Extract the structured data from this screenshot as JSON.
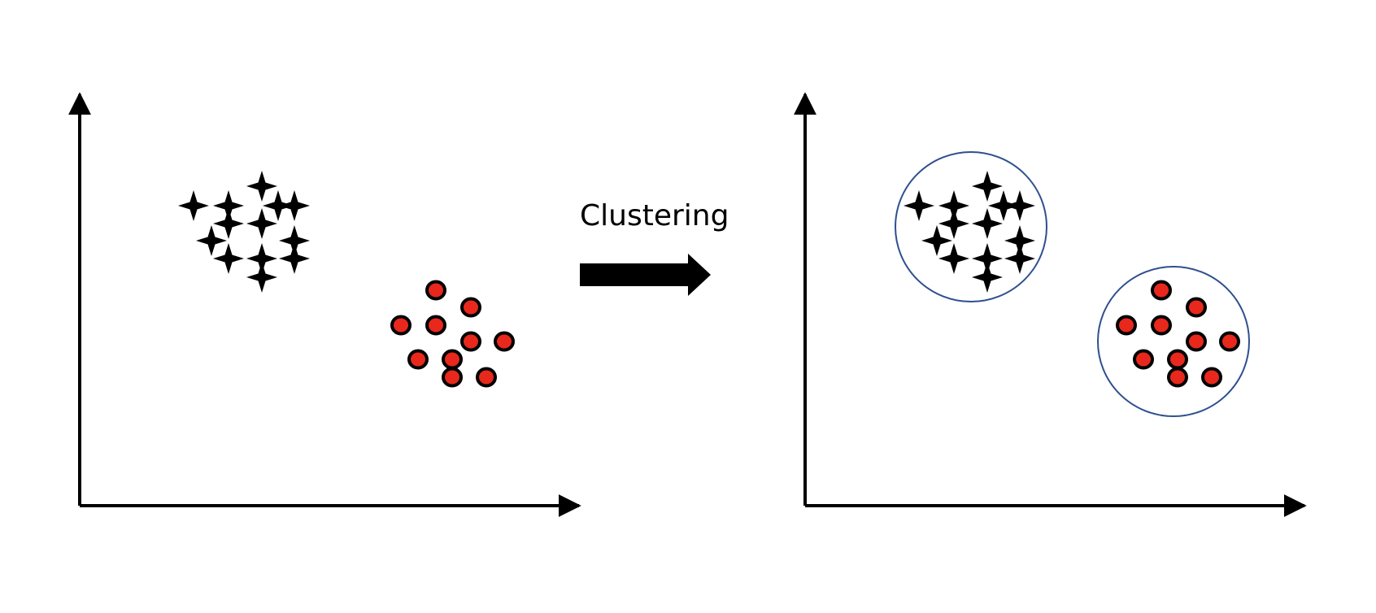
{
  "diagram": {
    "arrow_label": "Clustering",
    "colors": {
      "axis": "#000000",
      "star_fill": "#000000",
      "dot_fill": "#e8281c",
      "dot_stroke": "#000000",
      "cluster_outline": "#2f4f8f"
    },
    "panels": [
      {
        "name": "before",
        "clusters_outlined": false
      },
      {
        "name": "after",
        "clusters_outlined": true
      }
    ],
    "groups": [
      {
        "name": "star-group",
        "marker": "star",
        "count": 12
      },
      {
        "name": "dot-group",
        "marker": "circle",
        "count": 11
      }
    ]
  }
}
